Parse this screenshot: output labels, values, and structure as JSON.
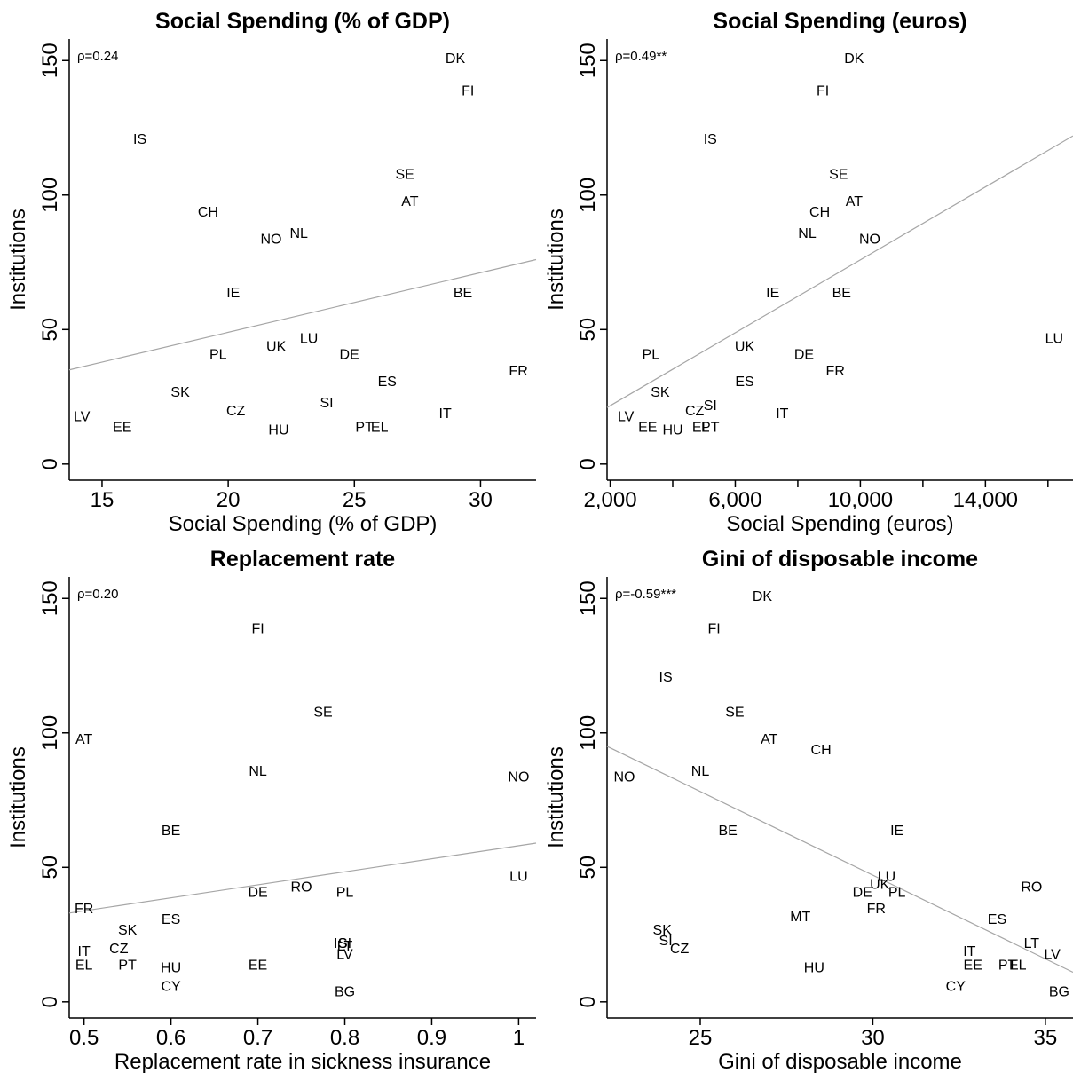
{
  "chart_data": [
    {
      "type": "scatter",
      "title": "Social Spending (% of GDP)",
      "xlabel": "Social Spending (% of GDP)",
      "ylabel": "Institutions",
      "xlim": [
        13.7,
        32.2
      ],
      "ylim": [
        -6,
        158
      ],
      "xticks": [
        15,
        20,
        25,
        30
      ],
      "xtick_labels": [
        "15",
        "20",
        "25",
        "30"
      ],
      "yticks": [
        0,
        50,
        100,
        150
      ],
      "ytick_labels": [
        "0",
        "50",
        "100",
        "150"
      ],
      "annotation": "ρ=0.24",
      "fit_line": {
        "x": [
          13.7,
          32.2
        ],
        "y": [
          35,
          76
        ]
      },
      "points": [
        {
          "label": "DK",
          "x": 29.0,
          "y": 151
        },
        {
          "label": "FI",
          "x": 29.5,
          "y": 139
        },
        {
          "label": "IS",
          "x": 16.5,
          "y": 121
        },
        {
          "label": "SE",
          "x": 27.0,
          "y": 108
        },
        {
          "label": "AT",
          "x": 27.2,
          "y": 98
        },
        {
          "label": "CH",
          "x": 19.2,
          "y": 94
        },
        {
          "label": "NL",
          "x": 22.8,
          "y": 86
        },
        {
          "label": "NO",
          "x": 21.7,
          "y": 84
        },
        {
          "label": "IE",
          "x": 20.2,
          "y": 64
        },
        {
          "label": "BE",
          "x": 29.3,
          "y": 64
        },
        {
          "label": "LU",
          "x": 23.2,
          "y": 47
        },
        {
          "label": "UK",
          "x": 21.9,
          "y": 44
        },
        {
          "label": "PL",
          "x": 19.6,
          "y": 41
        },
        {
          "label": "DE",
          "x": 24.8,
          "y": 41
        },
        {
          "label": "FR",
          "x": 31.5,
          "y": 35
        },
        {
          "label": "ES",
          "x": 26.3,
          "y": 31
        },
        {
          "label": "SK",
          "x": 18.1,
          "y": 27
        },
        {
          "label": "SI",
          "x": 23.9,
          "y": 23
        },
        {
          "label": "CZ",
          "x": 20.3,
          "y": 20
        },
        {
          "label": "IT",
          "x": 28.6,
          "y": 19
        },
        {
          "label": "LV",
          "x": 14.2,
          "y": 18
        },
        {
          "label": "EE",
          "x": 15.8,
          "y": 14
        },
        {
          "label": "HU",
          "x": 22.0,
          "y": 13
        },
        {
          "label": "PT",
          "x": 25.4,
          "y": 14
        },
        {
          "label": "EL",
          "x": 26.0,
          "y": 14
        }
      ]
    },
    {
      "type": "scatter",
      "title": "Social Spending (euros)",
      "xlabel": "Social Spending (euros)",
      "ylabel": "Institutions",
      "xlim": [
        1900,
        16800
      ],
      "ylim": [
        -6,
        158
      ],
      "xticks": [
        2000,
        4000,
        6000,
        8000,
        10000,
        12000,
        14000,
        16000
      ],
      "xtick_labels": [
        "2,000",
        "",
        "6,000",
        "",
        "10,000",
        "",
        "14,000",
        ""
      ],
      "yticks": [
        0,
        50,
        100,
        150
      ],
      "ytick_labels": [
        "0",
        "50",
        "100",
        "150"
      ],
      "annotation": "ρ=0.49**",
      "fit_line": {
        "x": [
          1900,
          16800
        ],
        "y": [
          21,
          122
        ]
      },
      "points": [
        {
          "label": "DK",
          "x": 9800,
          "y": 151
        },
        {
          "label": "FI",
          "x": 8800,
          "y": 139
        },
        {
          "label": "IS",
          "x": 5200,
          "y": 121
        },
        {
          "label": "SE",
          "x": 9300,
          "y": 108
        },
        {
          "label": "AT",
          "x": 9800,
          "y": 98
        },
        {
          "label": "CH",
          "x": 8700,
          "y": 94
        },
        {
          "label": "NL",
          "x": 8300,
          "y": 86
        },
        {
          "label": "NO",
          "x": 10300,
          "y": 84
        },
        {
          "label": "IE",
          "x": 7200,
          "y": 64
        },
        {
          "label": "BE",
          "x": 9400,
          "y": 64
        },
        {
          "label": "LU",
          "x": 16200,
          "y": 47
        },
        {
          "label": "UK",
          "x": 6300,
          "y": 44
        },
        {
          "label": "PL",
          "x": 3300,
          "y": 41
        },
        {
          "label": "DE",
          "x": 8200,
          "y": 41
        },
        {
          "label": "FR",
          "x": 9200,
          "y": 35
        },
        {
          "label": "ES",
          "x": 6300,
          "y": 31
        },
        {
          "label": "SK",
          "x": 3600,
          "y": 27
        },
        {
          "label": "SI",
          "x": 5200,
          "y": 22
        },
        {
          "label": "CZ",
          "x": 4700,
          "y": 20
        },
        {
          "label": "IT",
          "x": 7500,
          "y": 19
        },
        {
          "label": "LV",
          "x": 2500,
          "y": 18
        },
        {
          "label": "EE",
          "x": 3200,
          "y": 14
        },
        {
          "label": "HU",
          "x": 4000,
          "y": 13
        },
        {
          "label": "EL",
          "x": 4900,
          "y": 14
        },
        {
          "label": "PT",
          "x": 5200,
          "y": 14
        }
      ]
    },
    {
      "type": "scatter",
      "title": "Replacement rate",
      "xlabel": "Replacement rate in sickness insurance",
      "ylabel": "Institutions",
      "xlim": [
        0.483,
        1.02
      ],
      "ylim": [
        -6,
        158
      ],
      "xticks": [
        0.5,
        0.6,
        0.7,
        0.8,
        0.9,
        1
      ],
      "xtick_labels": [
        "0.5",
        "0.6",
        "0.7",
        "0.8",
        "0.9",
        "1"
      ],
      "yticks": [
        0,
        50,
        100,
        150
      ],
      "ytick_labels": [
        "0",
        "50",
        "100",
        "150"
      ],
      "annotation": "ρ=0.20",
      "fit_line": {
        "x": [
          0.483,
          1.02
        ],
        "y": [
          33,
          59
        ]
      },
      "points": [
        {
          "label": "FI",
          "x": 0.7,
          "y": 139
        },
        {
          "label": "SE",
          "x": 0.775,
          "y": 108
        },
        {
          "label": "AT",
          "x": 0.5,
          "y": 98
        },
        {
          "label": "NL",
          "x": 0.7,
          "y": 86
        },
        {
          "label": "NO",
          "x": 1.0,
          "y": 84
        },
        {
          "label": "BE",
          "x": 0.6,
          "y": 64
        },
        {
          "label": "LU",
          "x": 1.0,
          "y": 47
        },
        {
          "label": "RO",
          "x": 0.75,
          "y": 43
        },
        {
          "label": "DE",
          "x": 0.7,
          "y": 41
        },
        {
          "label": "PL",
          "x": 0.8,
          "y": 41
        },
        {
          "label": "FR",
          "x": 0.5,
          "y": 35
        },
        {
          "label": "ES",
          "x": 0.6,
          "y": 31
        },
        {
          "label": "SK",
          "x": 0.55,
          "y": 27
        },
        {
          "label": "IS",
          "x": 0.795,
          "y": 22
        },
        {
          "label": "SI",
          "x": 0.8,
          "y": 22
        },
        {
          "label": "LT",
          "x": 0.8,
          "y": 21
        },
        {
          "label": "CZ",
          "x": 0.54,
          "y": 20
        },
        {
          "label": "IT",
          "x": 0.5,
          "y": 19
        },
        {
          "label": "LV",
          "x": 0.8,
          "y": 18
        },
        {
          "label": "EL",
          "x": 0.5,
          "y": 14
        },
        {
          "label": "PT",
          "x": 0.55,
          "y": 14
        },
        {
          "label": "HU",
          "x": 0.6,
          "y": 13
        },
        {
          "label": "EE",
          "x": 0.7,
          "y": 14
        },
        {
          "label": "CY",
          "x": 0.6,
          "y": 6
        },
        {
          "label": "BG",
          "x": 0.8,
          "y": 4
        }
      ]
    },
    {
      "type": "scatter",
      "title": "Gini of disposable income",
      "xlabel": "Gini of disposable income",
      "ylabel": "Institutions",
      "xlim": [
        22.3,
        35.8
      ],
      "ylim": [
        -6,
        158
      ],
      "xticks": [
        25,
        30,
        35
      ],
      "xtick_labels": [
        "25",
        "30",
        "35"
      ],
      "yticks": [
        0,
        50,
        100,
        150
      ],
      "ytick_labels": [
        "0",
        "50",
        "100",
        "150"
      ],
      "annotation": "ρ=-0.59***",
      "fit_line": {
        "x": [
          22.3,
          35.8
        ],
        "y": [
          95,
          11
        ]
      },
      "points": [
        {
          "label": "DK",
          "x": 26.8,
          "y": 151
        },
        {
          "label": "FI",
          "x": 25.4,
          "y": 139
        },
        {
          "label": "IS",
          "x": 24.0,
          "y": 121
        },
        {
          "label": "SE",
          "x": 26.0,
          "y": 108
        },
        {
          "label": "AT",
          "x": 27.0,
          "y": 98
        },
        {
          "label": "CH",
          "x": 28.5,
          "y": 94
        },
        {
          "label": "NL",
          "x": 25.0,
          "y": 86
        },
        {
          "label": "NO",
          "x": 22.8,
          "y": 84
        },
        {
          "label": "BE",
          "x": 25.8,
          "y": 64
        },
        {
          "label": "IE",
          "x": 30.7,
          "y": 64
        },
        {
          "label": "LU",
          "x": 30.4,
          "y": 47
        },
        {
          "label": "RO",
          "x": 34.6,
          "y": 43
        },
        {
          "label": "UK",
          "x": 30.2,
          "y": 44
        },
        {
          "label": "DE",
          "x": 29.7,
          "y": 41
        },
        {
          "label": "PL",
          "x": 30.7,
          "y": 41
        },
        {
          "label": "FR",
          "x": 30.1,
          "y": 35
        },
        {
          "label": "MT",
          "x": 27.9,
          "y": 32
        },
        {
          "label": "ES",
          "x": 33.6,
          "y": 31
        },
        {
          "label": "SK",
          "x": 23.9,
          "y": 27
        },
        {
          "label": "SI",
          "x": 24.0,
          "y": 23
        },
        {
          "label": "CZ",
          "x": 24.4,
          "y": 20
        },
        {
          "label": "LT",
          "x": 34.6,
          "y": 22
        },
        {
          "label": "IT",
          "x": 32.8,
          "y": 19
        },
        {
          "label": "LV",
          "x": 35.2,
          "y": 18
        },
        {
          "label": "EE",
          "x": 32.9,
          "y": 14
        },
        {
          "label": "PT",
          "x": 33.9,
          "y": 14
        },
        {
          "label": "EL",
          "x": 34.2,
          "y": 14
        },
        {
          "label": "HU",
          "x": 28.3,
          "y": 13
        },
        {
          "label": "CY",
          "x": 32.4,
          "y": 6
        },
        {
          "label": "BG",
          "x": 35.4,
          "y": 4
        }
      ]
    }
  ]
}
